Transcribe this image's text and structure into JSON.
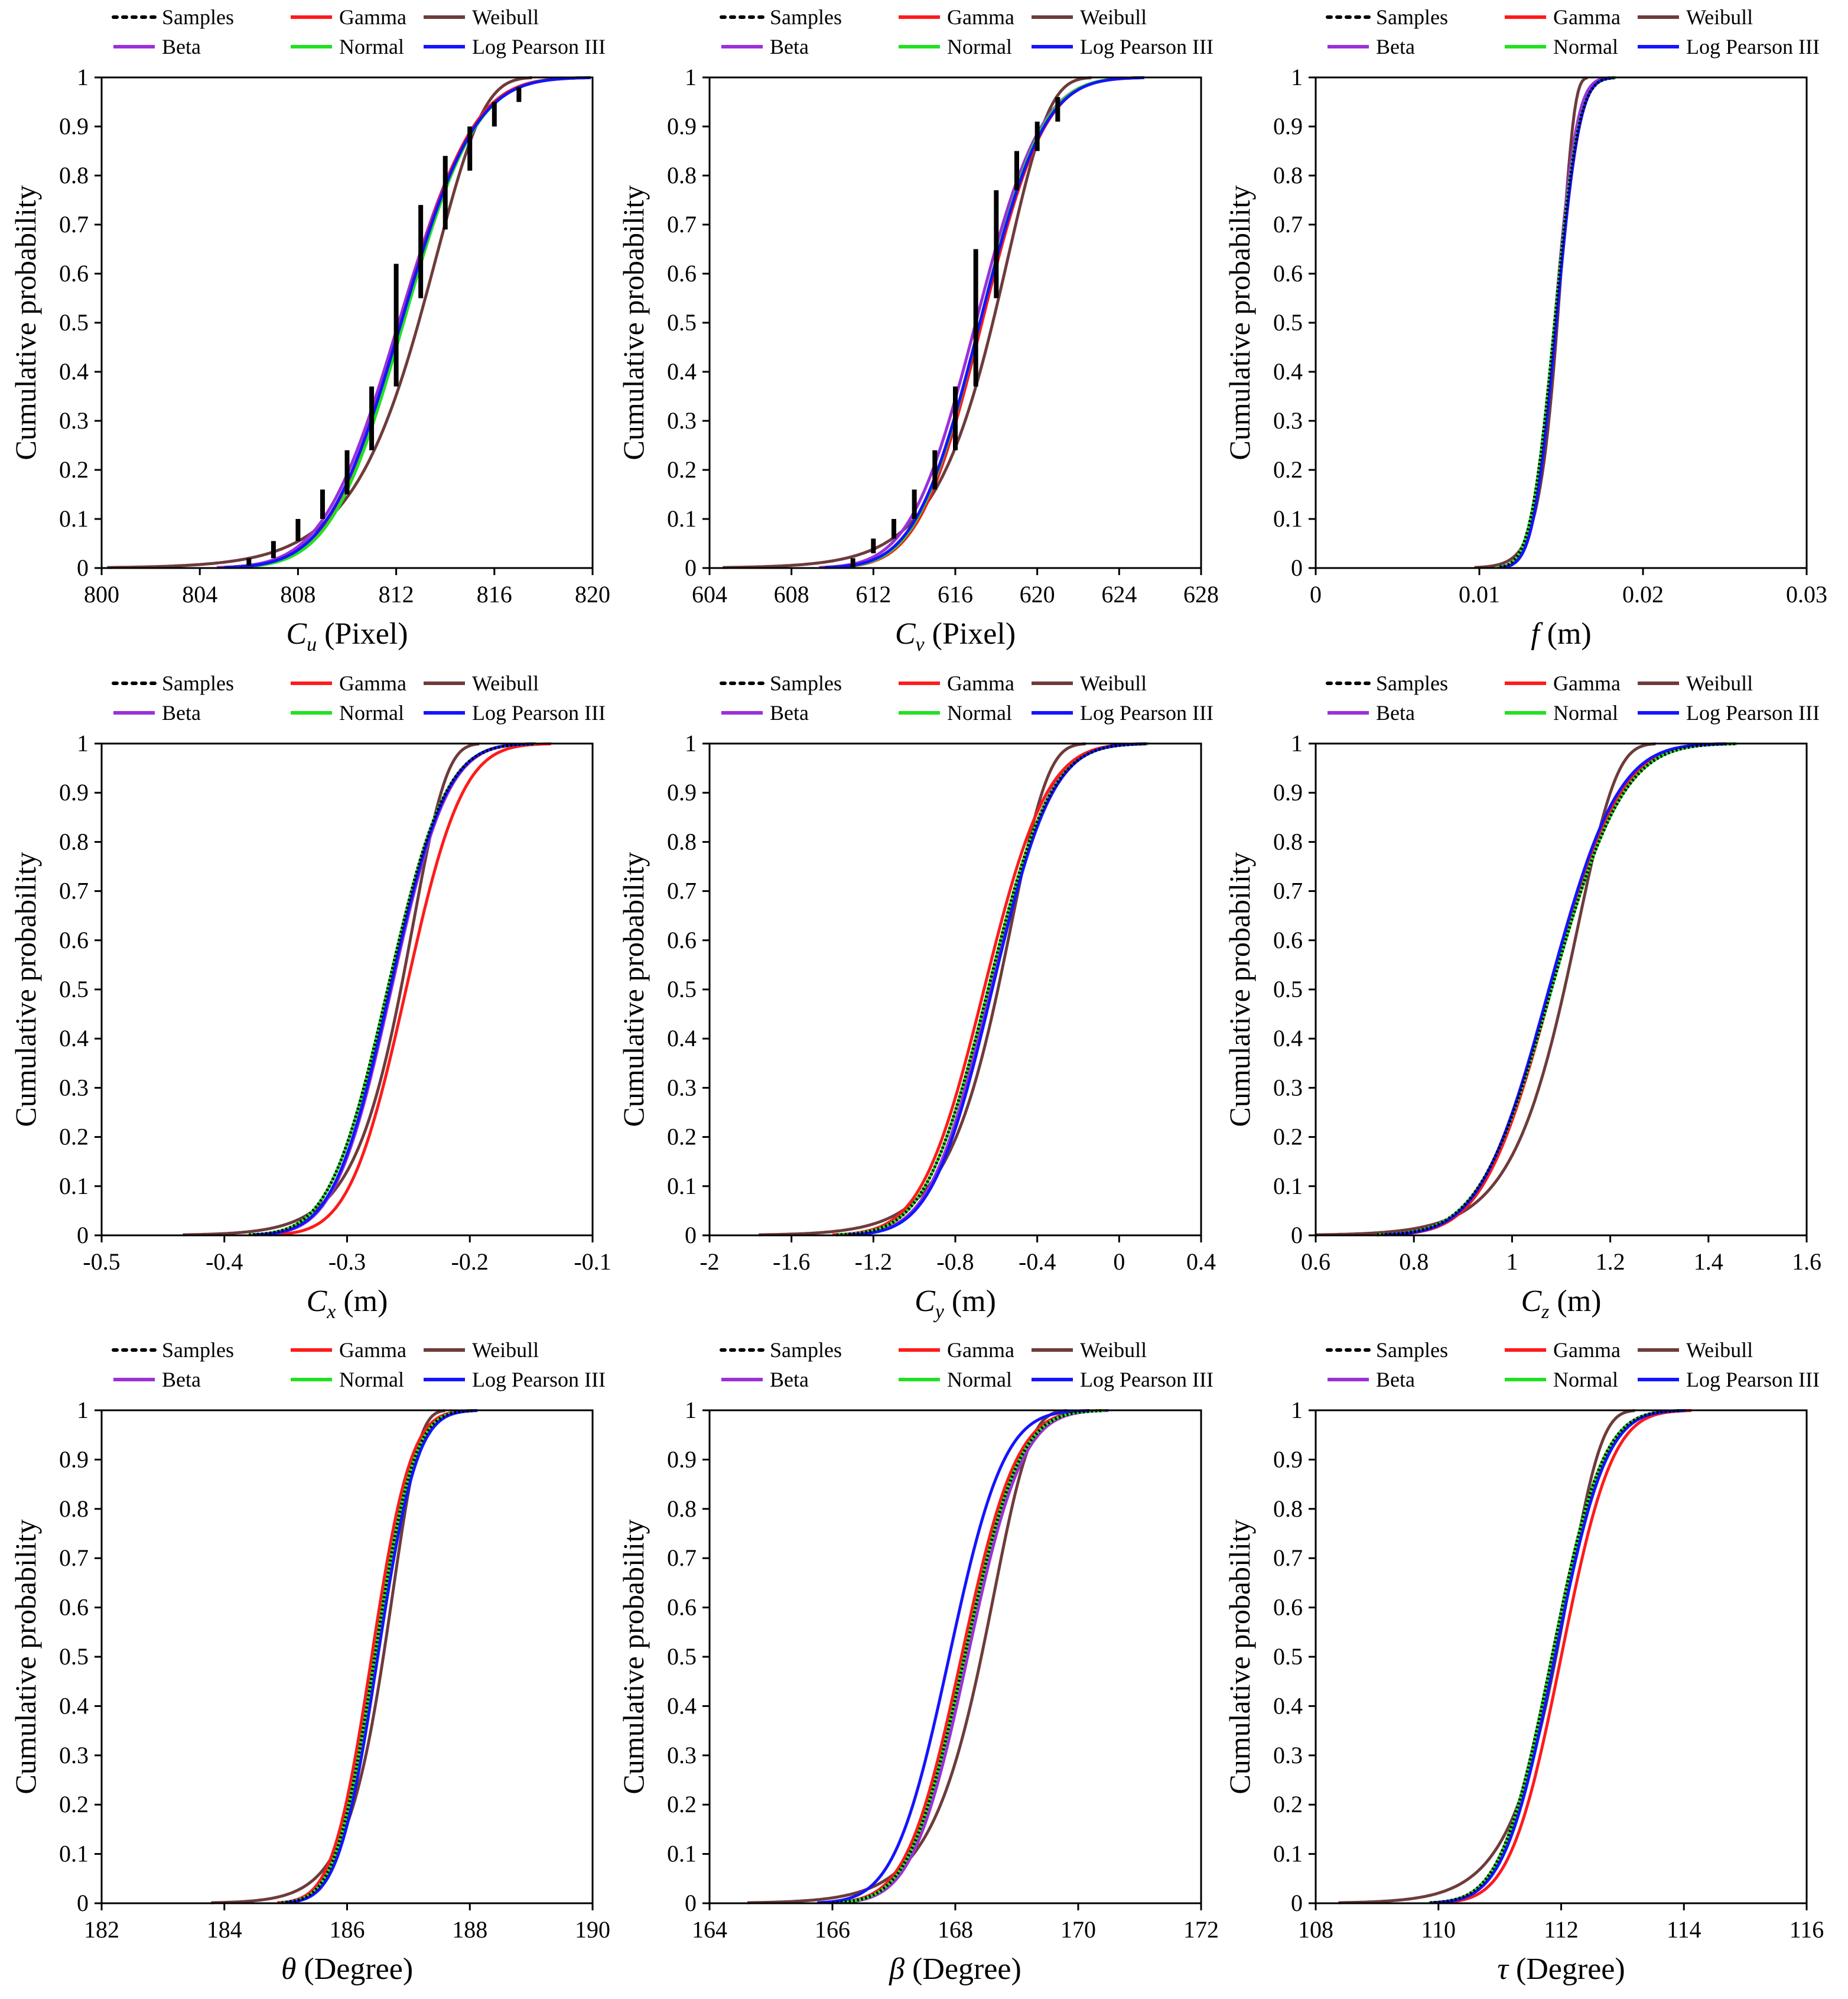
{
  "figure": {
    "panel_count": 9,
    "layout": "3x3 grid"
  },
  "legend_entries": [
    {
      "key": "samples",
      "label": "Samples",
      "color": "#000000",
      "style": "dotted"
    },
    {
      "key": "gamma",
      "label": "Gamma",
      "color": "#ff1a1a",
      "style": "solid"
    },
    {
      "key": "weibull",
      "label": "Weibull",
      "color": "#6e3b3b",
      "style": "solid"
    },
    {
      "key": "beta",
      "label": "Beta",
      "color": "#9b30d9",
      "style": "solid"
    },
    {
      "key": "normal",
      "label": "Normal",
      "color": "#22e022",
      "style": "solid"
    },
    {
      "key": "lp3",
      "label": "Log Pearson III",
      "color": "#1414ff",
      "style": "solid"
    }
  ],
  "chart_data": [
    {
      "id": "cu",
      "type": "line",
      "title": "",
      "legend_position": "top",
      "ylabel": "Cumulative probability",
      "xlabel_symbol": "C",
      "xlabel_sub": "u",
      "xlabel_unit": "(Pixel)",
      "xlim": [
        800,
        820
      ],
      "ylim": [
        0,
        1
      ],
      "xticks": [
        "800",
        "804",
        "808",
        "812",
        "816",
        "820"
      ],
      "yticks": [
        "0",
        "0.1",
        "0.2",
        "0.3",
        "0.4",
        "0.5",
        "0.6",
        "0.7",
        "0.8",
        "0.9",
        "1"
      ],
      "fits": {
        "gamma": {
          "mu": 812.2,
          "sigma": 2.3
        },
        "weibull": {
          "mu": 812.5,
          "sigma": 2.5,
          "skew": -1
        },
        "beta": {
          "mu": 812.1,
          "sigma": 2.4
        },
        "normal": {
          "mu": 812.3,
          "sigma": 2.3
        },
        "lp3": {
          "mu": 812.2,
          "sigma": 2.35
        }
      },
      "samples": {
        "x": [
          806,
          807,
          808,
          809,
          810,
          811,
          812,
          813,
          814,
          815,
          816,
          817
        ],
        "y_low": [
          0.005,
          0.02,
          0.055,
          0.1,
          0.15,
          0.24,
          0.37,
          0.55,
          0.69,
          0.81,
          0.9,
          0.95
        ],
        "y_high": [
          0.02,
          0.055,
          0.1,
          0.16,
          0.24,
          0.37,
          0.62,
          0.74,
          0.84,
          0.9,
          0.95,
          0.98
        ]
      }
    },
    {
      "id": "cv",
      "type": "line",
      "title": "",
      "legend_position": "top",
      "ylabel": "Cumulative probability",
      "xlabel_symbol": "C",
      "xlabel_sub": "v",
      "xlabel_unit": "(Pixel)",
      "xlim": [
        604,
        628
      ],
      "ylim": [
        0,
        1
      ],
      "xticks": [
        "604",
        "608",
        "612",
        "616",
        "620",
        "624",
        "628"
      ],
      "yticks": [
        "0",
        "0.1",
        "0.2",
        "0.3",
        "0.4",
        "0.5",
        "0.6",
        "0.7",
        "0.8",
        "0.9",
        "1"
      ],
      "fits": {
        "gamma": {
          "mu": 617.3,
          "sigma": 2.4
        },
        "weibull": {
          "mu": 617.4,
          "sigma": 2.6,
          "skew": -1
        },
        "beta": {
          "mu": 617.0,
          "sigma": 2.5
        },
        "normal": {
          "mu": 617.2,
          "sigma": 2.4
        },
        "lp3": {
          "mu": 617.2,
          "sigma": 2.45
        }
      },
      "samples": {
        "x": [
          611,
          612,
          613,
          614,
          615,
          616,
          617,
          618,
          619,
          620,
          621
        ],
        "y_low": [
          0.002,
          0.03,
          0.06,
          0.1,
          0.16,
          0.24,
          0.37,
          0.55,
          0.77,
          0.85,
          0.91
        ],
        "y_high": [
          0.02,
          0.06,
          0.1,
          0.16,
          0.24,
          0.37,
          0.65,
          0.77,
          0.85,
          0.91,
          0.96
        ]
      }
    },
    {
      "id": "f",
      "type": "line",
      "title": "",
      "legend_position": "top",
      "ylabel": "Cumulative probability",
      "xlabel_symbol": "f",
      "xlabel_sub": "",
      "xlabel_unit": "(m)",
      "xlim": [
        0,
        0.03
      ],
      "ylim": [
        0,
        1
      ],
      "xticks": [
        "0",
        "0.01",
        "0.02",
        "0.03"
      ],
      "yticks": [
        "0",
        "0.1",
        "0.2",
        "0.3",
        "0.4",
        "0.5",
        "0.6",
        "0.7",
        "0.8",
        "0.9",
        "1"
      ],
      "fits": {
        "gamma": {
          "mu": 0.0147,
          "sigma": 0.0011
        },
        "weibull": {
          "mu": 0.0146,
          "sigma": 0.001,
          "skew": -1
        },
        "beta": {
          "mu": 0.0146,
          "sigma": 0.00105
        },
        "normal": {
          "mu": 0.0146,
          "sigma": 0.00115
        },
        "lp3": {
          "mu": 0.0147,
          "sigma": 0.0011
        }
      },
      "samples": null
    },
    {
      "id": "cx",
      "type": "line",
      "title": "",
      "legend_position": "top",
      "ylabel": "Cumulative probability",
      "xlabel_symbol": "C",
      "xlabel_sub": "x",
      "xlabel_unit": "(m)",
      "xlim": [
        -0.5,
        -0.1
      ],
      "ylim": [
        0,
        1
      ],
      "xticks": [
        "-0.5",
        "-0.4",
        "-0.3",
        "-0.2",
        "-0.1"
      ],
      "yticks": [
        "0",
        "0.1",
        "0.2",
        "0.3",
        "0.4",
        "0.5",
        "0.6",
        "0.7",
        "0.8",
        "0.9",
        "1"
      ],
      "fits": {
        "gamma": {
          "mu": -0.252,
          "sigma": 0.036
        },
        "weibull": {
          "mu": -0.262,
          "sigma": 0.035,
          "skew": -1
        },
        "beta": {
          "mu": -0.264,
          "sigma": 0.036
        },
        "normal": {
          "mu": -0.267,
          "sigma": 0.037
        },
        "lp3": {
          "mu": -0.265,
          "sigma": 0.036
        }
      },
      "samples": null
    },
    {
      "id": "cy",
      "type": "line",
      "title": "",
      "legend_position": "top",
      "ylabel": "Cumulative probability",
      "xlabel_symbol": "C",
      "xlabel_sub": "y",
      "xlabel_unit": "(m)",
      "xlim": [
        -2,
        0.4
      ],
      "ylim": [
        0,
        1
      ],
      "xticks": [
        "-2",
        "-1.6",
        "-1.2",
        "-0.8",
        "-0.4",
        "0",
        "0.4"
      ],
      "yticks": [
        "0",
        "0.1",
        "0.2",
        "0.3",
        "0.4",
        "0.5",
        "0.6",
        "0.7",
        "0.8",
        "0.9",
        "1"
      ],
      "fits": {
        "gamma": {
          "mu": -0.66,
          "sigma": 0.24
        },
        "weibull": {
          "mu": -0.63,
          "sigma": 0.23,
          "skew": -1
        },
        "beta": {
          "mu": -0.63,
          "sigma": 0.23
        },
        "normal": {
          "mu": -0.64,
          "sigma": 0.24
        },
        "lp3": {
          "mu": -0.62,
          "sigma": 0.23
        }
      },
      "samples": null
    },
    {
      "id": "cz",
      "type": "line",
      "title": "",
      "legend_position": "top",
      "ylabel": "Cumulative probability",
      "xlabel_symbol": "C",
      "xlabel_sub": "z",
      "xlabel_unit": "(m)",
      "xlim": [
        0.6,
        1.6
      ],
      "ylim": [
        0,
        1
      ],
      "xticks": [
        "0.6",
        "0.8",
        "1",
        "1.2",
        "1.4",
        "1.6"
      ],
      "yticks": [
        "0",
        "0.1",
        "0.2",
        "0.3",
        "0.4",
        "0.5",
        "0.6",
        "0.7",
        "0.8",
        "0.9",
        "1"
      ],
      "fits": {
        "gamma": {
          "mu": 1.08,
          "sigma": 0.11
        },
        "weibull": {
          "mu": 1.09,
          "sigma": 0.1,
          "skew": -1
        },
        "beta": {
          "mu": 1.075,
          "sigma": 0.11
        },
        "normal": {
          "mu": 1.08,
          "sigma": 0.115
        },
        "lp3": {
          "mu": 1.075,
          "sigma": 0.11
        }
      },
      "samples": null
    },
    {
      "id": "theta",
      "type": "line",
      "title": "",
      "legend_position": "top",
      "ylabel": "Cumulative probability",
      "xlabel_symbol": "θ",
      "xlabel_sub": "",
      "xlabel_unit": "(Degree)",
      "xlim": [
        182,
        190
      ],
      "ylim": [
        0,
        1
      ],
      "xticks": [
        "182",
        "184",
        "186",
        "188",
        "190"
      ],
      "yticks": [
        "0",
        "0.1",
        "0.2",
        "0.3",
        "0.4",
        "0.5",
        "0.6",
        "0.7",
        "0.8",
        "0.9",
        "1"
      ],
      "fits": {
        "gamma": {
          "mu": 186.4,
          "sigma": 0.5
        },
        "weibull": {
          "mu": 186.5,
          "sigma": 0.55,
          "skew": -1
        },
        "beta": {
          "mu": 186.45,
          "sigma": 0.5
        },
        "normal": {
          "mu": 186.45,
          "sigma": 0.5
        },
        "lp3": {
          "mu": 186.5,
          "sigma": 0.5
        }
      },
      "samples": null
    },
    {
      "id": "beta",
      "type": "line",
      "title": "",
      "legend_position": "top",
      "ylabel": "Cumulative probability",
      "xlabel_symbol": "β",
      "xlabel_sub": "",
      "xlabel_unit": "(Degree)",
      "xlim": [
        164,
        172
      ],
      "ylim": [
        0,
        1
      ],
      "xticks": [
        "164",
        "166",
        "168",
        "170",
        "172"
      ],
      "yticks": [
        "0",
        "0.1",
        "0.2",
        "0.3",
        "0.4",
        "0.5",
        "0.6",
        "0.7",
        "0.8",
        "0.9",
        "1"
      ],
      "fits": {
        "gamma": {
          "mu": 168.1,
          "sigma": 0.7
        },
        "weibull": {
          "mu": 168.3,
          "sigma": 0.75,
          "skew": -1
        },
        "beta": {
          "mu": 168.2,
          "sigma": 0.7
        },
        "normal": {
          "mu": 168.15,
          "sigma": 0.7
        },
        "lp3": {
          "mu": 167.9,
          "sigma": 0.7
        }
      },
      "samples": null
    },
    {
      "id": "tau",
      "type": "line",
      "title": "",
      "legend_position": "top",
      "ylabel": "Cumulative probability",
      "xlabel_symbol": "τ",
      "xlabel_sub": "",
      "xlabel_unit": "(Degree)",
      "xlim": [
        108,
        116
      ],
      "ylim": [
        0,
        1
      ],
      "xticks": [
        "108",
        "110",
        "112",
        "114",
        "116"
      ],
      "yticks": [
        "0",
        "0.1",
        "0.2",
        "0.3",
        "0.4",
        "0.5",
        "0.6",
        "0.7",
        "0.8",
        "0.9",
        "1"
      ],
      "fits": {
        "gamma": {
          "mu": 112.0,
          "sigma": 0.65
        },
        "weibull": {
          "mu": 111.8,
          "sigma": 0.7,
          "skew": -1
        },
        "beta": {
          "mu": 111.85,
          "sigma": 0.65
        },
        "normal": {
          "mu": 111.85,
          "sigma": 0.65
        },
        "lp3": {
          "mu": 111.9,
          "sigma": 0.65
        }
      },
      "samples": null
    }
  ]
}
